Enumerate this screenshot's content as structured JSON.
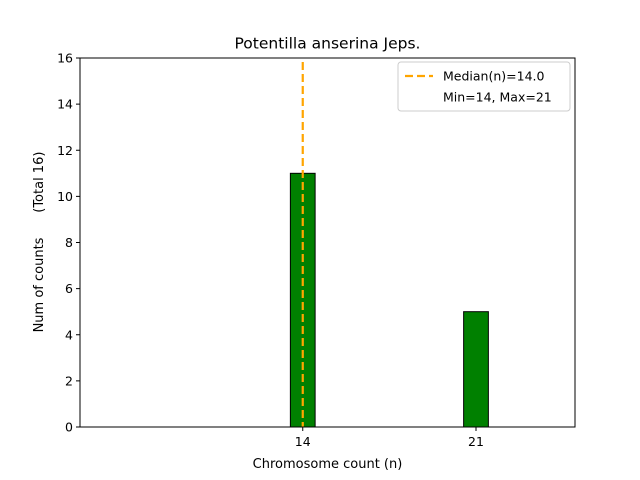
{
  "chart_data": {
    "type": "bar",
    "title": "Potentilla anserina Jeps.",
    "xlabel": "Chromosome count (n)",
    "ylabel": "Num of counts      (Total 16)",
    "xlim": [
      5,
      25
    ],
    "ylim": [
      0,
      16
    ],
    "xticks": [
      14,
      21
    ],
    "yticks": [
      0,
      2,
      4,
      6,
      8,
      10,
      12,
      14,
      16
    ],
    "bars": [
      {
        "x": 14,
        "value": 11
      },
      {
        "x": 21,
        "value": 5
      }
    ],
    "bar_width": 1,
    "bar_color": "#008000",
    "edge_color": "#000000",
    "baseline_span": [
      14,
      24
    ],
    "median": {
      "value": 14.0,
      "color": "#ffa500",
      "label": "Median(n)=14.0"
    },
    "legend": {
      "placement": "upper-right",
      "entries": [
        "Median(n)=14.0",
        "Min=14, Max=21"
      ]
    }
  }
}
